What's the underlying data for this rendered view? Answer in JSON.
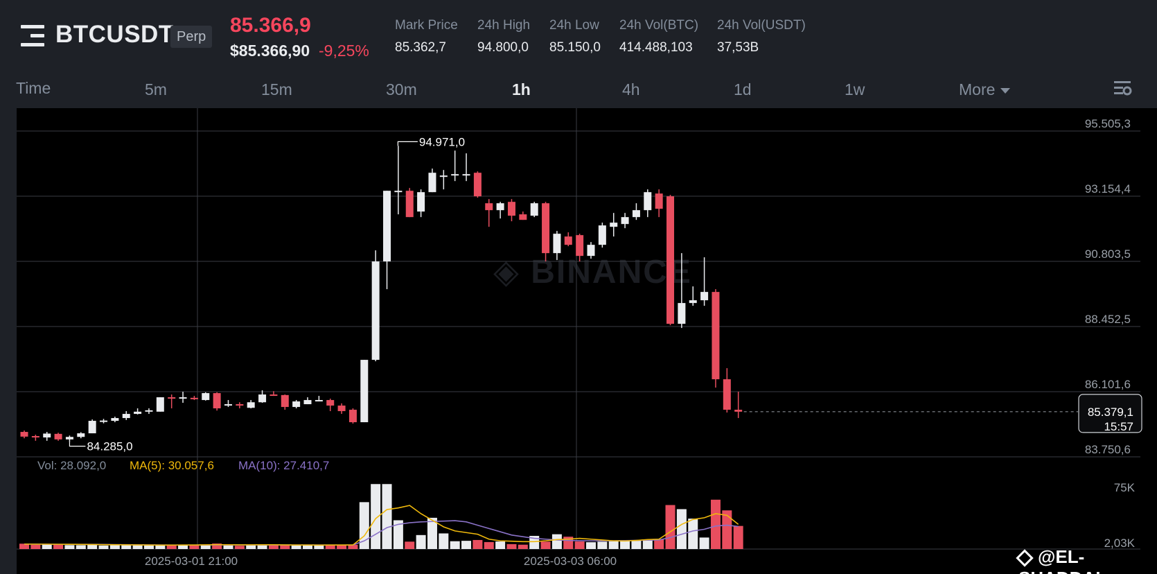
{
  "header": {
    "symbol": "BTCUSDT",
    "contract_type": "Perp",
    "last_price": "85.366,9",
    "usd_price": "$85.366,90",
    "change_pct": "-9,25%",
    "stats": [
      {
        "label": "Mark Price",
        "value": "85.362,7"
      },
      {
        "label": "24h High",
        "value": "94.800,0"
      },
      {
        "label": "24h Low",
        "value": "85.150,0"
      },
      {
        "label": "24h Vol(BTC)",
        "value": "414.488,103"
      },
      {
        "label": "24h Vol(USDT)",
        "value": "37,53B"
      }
    ]
  },
  "tabs": [
    {
      "label": "Time",
      "active": false
    },
    {
      "label": "5m",
      "active": false
    },
    {
      "label": "15m",
      "active": false
    },
    {
      "label": "30m",
      "active": false
    },
    {
      "label": "1h",
      "active": true
    },
    {
      "label": "4h",
      "active": false
    },
    {
      "label": "1d",
      "active": false
    },
    {
      "label": "1w",
      "active": false
    },
    {
      "label": "More",
      "active": false
    }
  ],
  "chart_data": {
    "type": "candlestick",
    "interval": "1h",
    "price_axis_ticks": [
      "95.505,3",
      "93.154,4",
      "90.803,5",
      "88.452,5",
      "86.101,6",
      "83.750,6"
    ],
    "price_axis_values": [
      95505.3,
      93154.4,
      90803.5,
      88452.5,
      86101.6,
      83750.6
    ],
    "time_axis_ticks": [
      "2025-03-01 21:00",
      "2025-03-03 06:00"
    ],
    "high_marker": "94.971,0",
    "low_marker": "84.285,0",
    "current_price_label": "85.379,1",
    "countdown_label": "15:57",
    "candles": [
      {
        "o": 84650,
        "h": 84700,
        "l": 84420,
        "c": 84480
      },
      {
        "o": 84500,
        "h": 84550,
        "l": 84330,
        "c": 84450
      },
      {
        "o": 84450,
        "h": 84650,
        "l": 84330,
        "c": 84590
      },
      {
        "o": 84580,
        "h": 84620,
        "l": 84330,
        "c": 84380
      },
      {
        "o": 84380,
        "h": 84520,
        "l": 84285,
        "c": 84470
      },
      {
        "o": 84470,
        "h": 84640,
        "l": 84420,
        "c": 84600
      },
      {
        "o": 84600,
        "h": 85100,
        "l": 84600,
        "c": 85050
      },
      {
        "o": 85050,
        "h": 85120,
        "l": 84960,
        "c": 85060
      },
      {
        "o": 85050,
        "h": 85200,
        "l": 85000,
        "c": 85150
      },
      {
        "o": 85150,
        "h": 85400,
        "l": 85080,
        "c": 85300
      },
      {
        "o": 85300,
        "h": 85500,
        "l": 85280,
        "c": 85380
      },
      {
        "o": 85380,
        "h": 85500,
        "l": 85300,
        "c": 85430
      },
      {
        "o": 85380,
        "h": 85900,
        "l": 85380,
        "c": 85900
      },
      {
        "o": 85900,
        "h": 86000,
        "l": 85500,
        "c": 85880
      },
      {
        "o": 85880,
        "h": 86100,
        "l": 85700,
        "c": 85900
      },
      {
        "o": 85880,
        "h": 85950,
        "l": 85800,
        "c": 85870
      },
      {
        "o": 85800,
        "h": 86080,
        "l": 85780,
        "c": 86050
      },
      {
        "o": 86050,
        "h": 86080,
        "l": 85420,
        "c": 85500
      },
      {
        "o": 85600,
        "h": 85800,
        "l": 85550,
        "c": 85650
      },
      {
        "o": 85650,
        "h": 85720,
        "l": 85500,
        "c": 85620
      },
      {
        "o": 85520,
        "h": 85800,
        "l": 85500,
        "c": 85720
      },
      {
        "o": 85720,
        "h": 86150,
        "l": 85700,
        "c": 86000
      },
      {
        "o": 86000,
        "h": 86120,
        "l": 85950,
        "c": 85980
      },
      {
        "o": 85980,
        "h": 86000,
        "l": 85450,
        "c": 85550
      },
      {
        "o": 85550,
        "h": 85800,
        "l": 85500,
        "c": 85750
      },
      {
        "o": 85650,
        "h": 85900,
        "l": 85650,
        "c": 85800
      },
      {
        "o": 85800,
        "h": 85950,
        "l": 85750,
        "c": 85800
      },
      {
        "o": 85800,
        "h": 85850,
        "l": 85400,
        "c": 85600
      },
      {
        "o": 85600,
        "h": 85680,
        "l": 85300,
        "c": 85400
      },
      {
        "o": 85450,
        "h": 85500,
        "l": 84950,
        "c": 85000
      },
      {
        "o": 85000,
        "h": 87250,
        "l": 85000,
        "c": 87250
      },
      {
        "o": 87250,
        "h": 91200,
        "l": 87200,
        "c": 90800
      },
      {
        "o": 90800,
        "h": 93350,
        "l": 89800,
        "c": 93350
      },
      {
        "o": 93350,
        "h": 94971,
        "l": 92500,
        "c": 93350
      },
      {
        "o": 93350,
        "h": 93450,
        "l": 92400,
        "c": 92400
      },
      {
        "o": 92600,
        "h": 93400,
        "l": 92400,
        "c": 93300
      },
      {
        "o": 93300,
        "h": 94150,
        "l": 93300,
        "c": 94000
      },
      {
        "o": 93900,
        "h": 94100,
        "l": 93400,
        "c": 93900
      },
      {
        "o": 93900,
        "h": 94800,
        "l": 93700,
        "c": 93950
      },
      {
        "o": 93950,
        "h": 94700,
        "l": 93700,
        "c": 93950
      },
      {
        "o": 94000,
        "h": 94050,
        "l": 93100,
        "c": 93150
      },
      {
        "o": 92900,
        "h": 93050,
        "l": 92050,
        "c": 92650
      },
      {
        "o": 92650,
        "h": 92950,
        "l": 92350,
        "c": 92900
      },
      {
        "o": 92950,
        "h": 93050,
        "l": 92250,
        "c": 92450
      },
      {
        "o": 92500,
        "h": 92600,
        "l": 92300,
        "c": 92300
      },
      {
        "o": 92450,
        "h": 92950,
        "l": 92400,
        "c": 92900
      },
      {
        "o": 92900,
        "h": 92950,
        "l": 90800,
        "c": 91100
      },
      {
        "o": 91100,
        "h": 91900,
        "l": 90850,
        "c": 91800
      },
      {
        "o": 91700,
        "h": 91850,
        "l": 91350,
        "c": 91400
      },
      {
        "o": 91750,
        "h": 91800,
        "l": 90800,
        "c": 91000
      },
      {
        "o": 91000,
        "h": 91500,
        "l": 90900,
        "c": 91400
      },
      {
        "o": 91400,
        "h": 92200,
        "l": 91300,
        "c": 92100
      },
      {
        "o": 92050,
        "h": 92550,
        "l": 91700,
        "c": 92200
      },
      {
        "o": 92150,
        "h": 92550,
        "l": 92000,
        "c": 92400
      },
      {
        "o": 92400,
        "h": 92900,
        "l": 92300,
        "c": 92650
      },
      {
        "o": 92650,
        "h": 93400,
        "l": 92400,
        "c": 93300
      },
      {
        "o": 93250,
        "h": 93400,
        "l": 92400,
        "c": 92700
      },
      {
        "o": 93150,
        "h": 93200,
        "l": 88500,
        "c": 88550
      },
      {
        "o": 88550,
        "h": 91100,
        "l": 88400,
        "c": 89300
      },
      {
        "o": 89300,
        "h": 89900,
        "l": 89200,
        "c": 89400
      },
      {
        "o": 89400,
        "h": 90950,
        "l": 89200,
        "c": 89700
      },
      {
        "o": 89700,
        "h": 89800,
        "l": 86250,
        "c": 86550
      },
      {
        "o": 86550,
        "h": 86950,
        "l": 85350,
        "c": 85450
      },
      {
        "o": 85450,
        "h": 86100,
        "l": 85150,
        "c": 85379
      }
    ],
    "volume_panel": {
      "vol_label": "Vol: 28.092,0",
      "ma5_label": "MA(5): 30.057,6",
      "ma10_label": "MA(10): 27.410,7",
      "axis_ticks": [
        "75K",
        "2,03K"
      ],
      "axis_values": [
        75000,
        2030
      ],
      "volumes": [
        6500,
        5200,
        5800,
        6200,
        4800,
        4700,
        5300,
        4300,
        4700,
        5000,
        4800,
        4300,
        4600,
        4400,
        5200,
        4800,
        5600,
        6700,
        4400,
        4000,
        4800,
        5600,
        5400,
        4800,
        4300,
        4500,
        4700,
        5000,
        4400,
        5200,
        57000,
        79000,
        79000,
        35000,
        9000,
        17000,
        38000,
        19000,
        9500,
        10000,
        11000,
        8500,
        9200,
        6000,
        5300,
        16000,
        9000,
        18000,
        15000,
        9200,
        8300,
        9000,
        9400,
        10600,
        11000,
        11800,
        12000,
        53500,
        48500,
        37000,
        14000,
        60000,
        47000,
        28092
      ],
      "ma5": [
        6000,
        5900,
        5900,
        5800,
        5700,
        5600,
        5500,
        5300,
        5200,
        5100,
        5000,
        4900,
        4800,
        4800,
        4900,
        4900,
        5100,
        5300,
        5200,
        5100,
        5100,
        5200,
        5200,
        5000,
        4900,
        4900,
        4800,
        4900,
        4900,
        5000,
        16000,
        37000,
        48000,
        50000,
        53000,
        43000,
        35000,
        27000,
        22000,
        20000,
        18000,
        12000,
        10000,
        9500,
        9000,
        9000,
        10000,
        11500,
        12000,
        13000,
        12000,
        11000,
        10000,
        9800,
        10500,
        11500,
        12000,
        21000,
        30000,
        36000,
        38000,
        43000,
        41000,
        30057
      ],
      "ma10": [
        6000,
        6000,
        5900,
        5800,
        5800,
        5700,
        5700,
        5600,
        5400,
        5300,
        5200,
        5100,
        5000,
        4900,
        4900,
        4900,
        4900,
        5000,
        5000,
        5000,
        5000,
        5000,
        5000,
        5000,
        5000,
        5000,
        5000,
        4900,
        4900,
        4900,
        10000,
        18000,
        26000,
        30000,
        32000,
        33000,
        33500,
        34000,
        34500,
        33000,
        29000,
        25000,
        21000,
        17000,
        15000,
        13000,
        12000,
        11000,
        10500,
        10200,
        10000,
        10000,
        10100,
        10300,
        10500,
        10800,
        11000,
        14000,
        18000,
        22000,
        24000,
        28000,
        29000,
        27410
      ]
    }
  },
  "credit": "@EL-SHADDAI",
  "colors": {
    "up": "#eaecef",
    "down": "#e84e5f",
    "ma5": "#f0b90b",
    "ma10": "#8a72c8",
    "grid": "#3a3d44",
    "background": "#000000"
  }
}
